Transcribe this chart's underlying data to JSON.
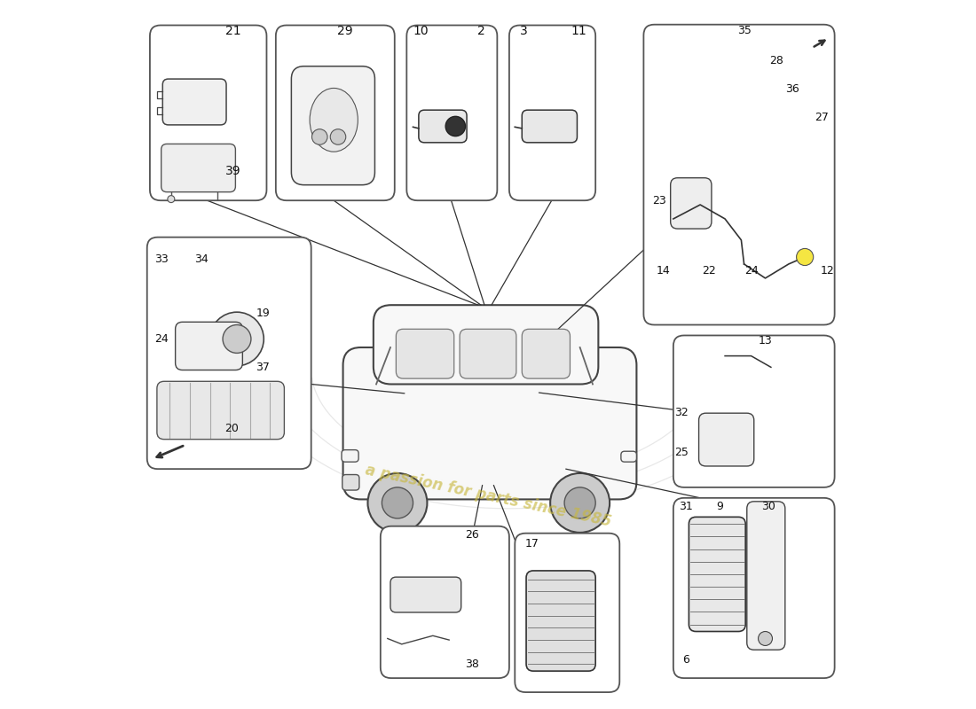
{
  "bg_color": "#ffffff",
  "line_color": "#333333",
  "box_edge": "#555555",
  "watermark_text": "a passion for parts since 1985",
  "watermark_color": "#c8b840",
  "car_color": "#f5f5f5"
}
